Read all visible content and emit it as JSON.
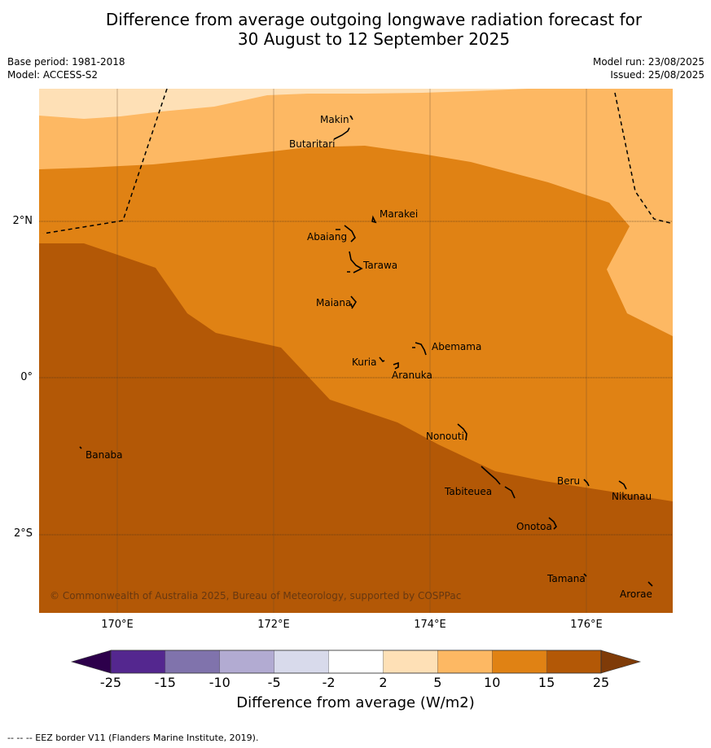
{
  "title": {
    "line1": "Difference from average outgoing longwave radiation forecast for",
    "line2": "30 August to 12 September 2025"
  },
  "meta": {
    "base_period": "Base period: 1981-2018",
    "model": "Model: ACCESS-S2",
    "model_run": "Model run: 23/08/2025",
    "issued": "Issued: 25/08/2025"
  },
  "axes": {
    "lat_labels": [
      "2°N",
      "0°",
      "2°S"
    ],
    "lon_labels": [
      "170°E",
      "172°E",
      "174°E",
      "176°E"
    ]
  },
  "places": [
    "Makin",
    "Butaritari",
    "Marakei",
    "Abaiang",
    "Tarawa",
    "Maiana",
    "Abemama",
    "Kuria",
    "Aranuka",
    "Nonouti",
    "Banaba",
    "Beru",
    "Tabiteuea",
    "Nikunau",
    "Onotoa",
    "Tamana",
    "Arorae"
  ],
  "copyright": "© Commonwealth of Australia 2025, Bureau of Meteorology, supported by COSPPac",
  "colorbar": {
    "ticks": [
      "-25",
      "-15",
      "-10",
      "-5",
      "-2",
      "2",
      "5",
      "10",
      "15",
      "25"
    ],
    "colors": [
      "#54278f",
      "#8073ac",
      "#b2abd2",
      "#d8daeb",
      "#ffffff",
      "#fee0b6",
      "#fdb863",
      "#e08214",
      "#b35806"
    ],
    "under_color": "#2d004b",
    "over_color": "#7f3b08",
    "title": "Difference from average (W/m2)"
  },
  "footer": "--  --  -- EEZ border V11 (Flanders Marine Institute, 2019)."
}
